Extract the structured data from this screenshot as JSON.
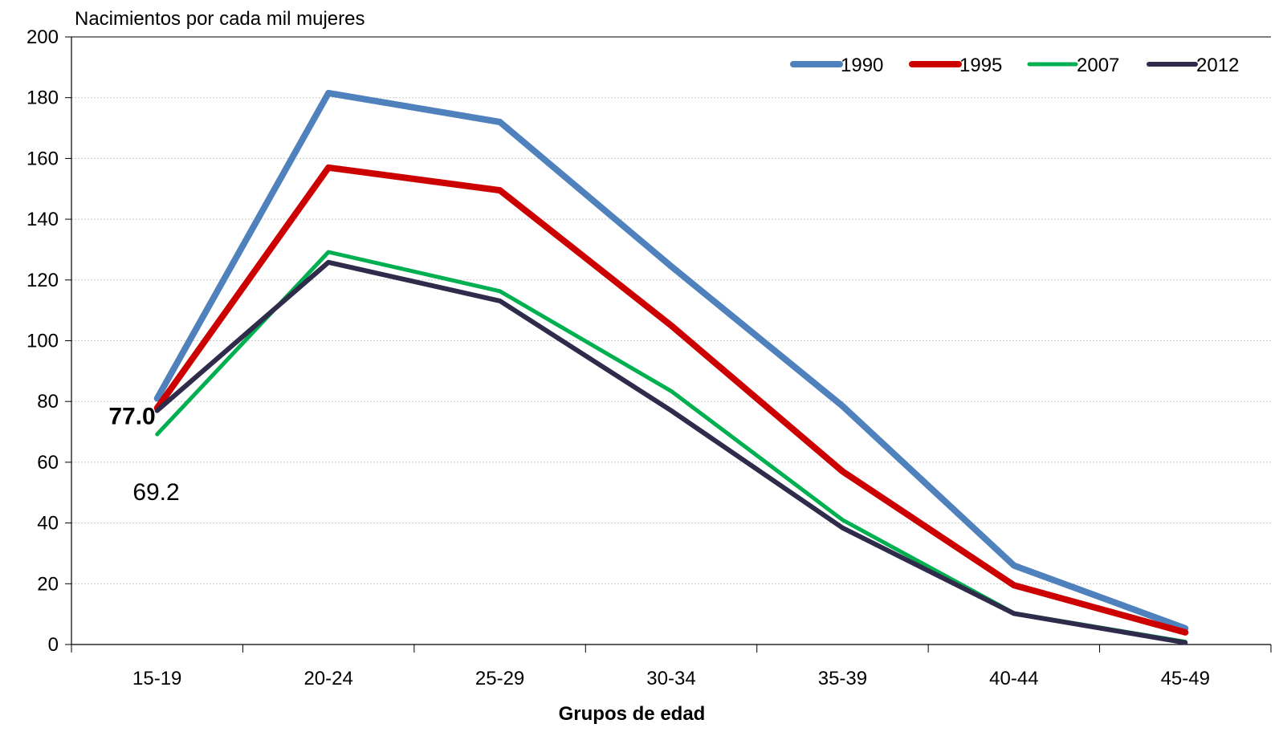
{
  "chart_data": {
    "type": "line",
    "title": "",
    "ylabel": "Nacimientos por cada mil mujeres",
    "xlabel": "Grupos de edad",
    "categories": [
      "15-19",
      "20-24",
      "25-29",
      "30-34",
      "35-39",
      "40-44",
      "45-49"
    ],
    "ylim": [
      0,
      200
    ],
    "yticks": [
      0,
      20,
      40,
      60,
      80,
      100,
      120,
      140,
      160,
      180,
      200
    ],
    "grid": true,
    "legend_position": "top-right",
    "series": [
      {
        "name": "1990",
        "color": "#4F81BD",
        "values": [
          81.0,
          181.5,
          172.0,
          124.5,
          78.5,
          26.0,
          5.3
        ]
      },
      {
        "name": "1995",
        "color": "#CC0000",
        "values": [
          77.8,
          157.0,
          149.5,
          105.0,
          57.0,
          19.5,
          4.0
        ]
      },
      {
        "name": "2007",
        "color": "#00B050",
        "values": [
          69.2,
          129.2,
          116.3,
          83.4,
          41.0,
          10.3,
          0.9
        ]
      },
      {
        "name": "2012",
        "color": "#2E2B4B",
        "values": [
          77.0,
          125.8,
          113.1,
          77.0,
          38.4,
          10.2,
          0.6
        ]
      }
    ],
    "annotations": [
      {
        "text": "77.0",
        "series": "2012",
        "category": "15-19",
        "bold": true
      },
      {
        "text": "69.2",
        "series": "2007",
        "category": "15-19",
        "bold": false
      }
    ]
  }
}
